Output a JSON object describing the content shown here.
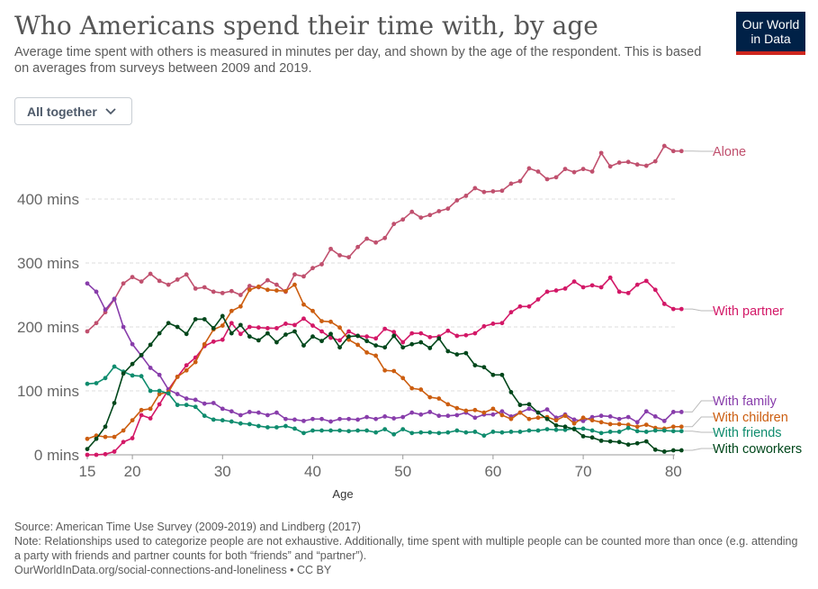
{
  "header": {
    "title": "Who Americans spend their time with, by age",
    "subtitle": "Average time spent with others is measured in minutes per day, and shown by the age of the respondent. This is based on averages from surveys between 2009 and 2019.",
    "logo_line1": "Our World",
    "logo_line2": "in Data"
  },
  "controls": {
    "dropdown_label": "All together"
  },
  "footer": {
    "source": "Source: American Time Use Survey (2009-2019) and Lindberg (2017)",
    "note": "Note: Relationships used to categorize people are not exhaustive. Additionally, time spent with multiple people can be counted more than once (e.g. attending a party with friends and partner counts for both “friends” and “partner”).",
    "link": "OurWorldInData.org/social-connections-and-loneliness • CC BY"
  },
  "chart_data": {
    "type": "line",
    "xlabel": "Age",
    "ylabel": "",
    "xlim": [
      15,
      80
    ],
    "ylim": [
      0,
      480
    ],
    "x_ticks": [
      15,
      20,
      30,
      40,
      50,
      60,
      70,
      80
    ],
    "y_ticks": [
      0,
      100,
      200,
      300,
      400
    ],
    "y_tick_labels": [
      "0 mins",
      "100 mins",
      "200 mins",
      "300 mins",
      "400 mins"
    ],
    "grid": "horizontal dashed",
    "legend": "right, labels at line ends",
    "x": [
      15,
      16,
      17,
      18,
      19,
      20,
      21,
      22,
      23,
      24,
      25,
      26,
      27,
      28,
      29,
      30,
      31,
      32,
      33,
      34,
      35,
      36,
      37,
      38,
      39,
      40,
      41,
      42,
      43,
      44,
      45,
      46,
      47,
      48,
      49,
      50,
      51,
      52,
      53,
      54,
      55,
      56,
      57,
      58,
      59,
      60,
      61,
      62,
      63,
      64,
      65,
      66,
      67,
      68,
      69,
      70,
      71,
      72,
      73,
      74,
      75,
      76,
      77,
      78,
      79,
      80,
      80.9
    ],
    "series": [
      {
        "name": "Alone",
        "color": "#c0506e",
        "values": [
          193,
          206,
          223,
          243,
          268,
          278,
          271,
          283,
          272,
          266,
          274,
          282,
          260,
          262,
          255,
          253,
          256,
          250,
          264,
          262,
          273,
          266,
          255,
          282,
          279,
          292,
          298,
          322,
          312,
          309,
          325,
          338,
          332,
          339,
          361,
          368,
          380,
          371,
          375,
          381,
          385,
          398,
          405,
          417,
          411,
          412,
          413,
          424,
          428,
          448,
          443,
          431,
          434,
          447,
          442,
          447,
          443,
          472,
          451,
          457,
          458,
          454,
          452,
          459,
          483,
          475,
          475
        ]
      },
      {
        "name": "With partner",
        "color": "#d31867",
        "values": [
          0,
          0,
          1,
          5,
          20,
          26,
          62,
          57,
          79,
          102,
          122,
          140,
          152,
          170,
          177,
          180,
          206,
          189,
          200,
          199,
          198,
          198,
          205,
          203,
          213,
          202,
          193,
          183,
          179,
          193,
          186,
          185,
          182,
          197,
          192,
          176,
          190,
          190,
          184,
          185,
          194,
          186,
          187,
          190,
          201,
          205,
          206,
          223,
          232,
          232,
          243,
          255,
          257,
          260,
          271,
          262,
          265,
          262,
          277,
          255,
          253,
          266,
          272,
          258,
          236,
          228,
          228
        ]
      },
      {
        "name": "With family",
        "color": "#883dab",
        "values": [
          268,
          255,
          227,
          244,
          200,
          173,
          155,
          136,
          125,
          102,
          95,
          88,
          86,
          80,
          81,
          72,
          68,
          62,
          67,
          66,
          62,
          66,
          56,
          55,
          53,
          56,
          56,
          52,
          56,
          56,
          55,
          59,
          56,
          60,
          57,
          59,
          66,
          63,
          67,
          61,
          61,
          62,
          66,
          58,
          63,
          63,
          68,
          60,
          66,
          72,
          66,
          71,
          58,
          63,
          55,
          53,
          59,
          61,
          60,
          56,
          59,
          51,
          68,
          60,
          53,
          67,
          67
        ]
      },
      {
        "name": "With children",
        "color": "#cc5e10",
        "values": [
          25,
          30,
          28,
          28,
          38,
          54,
          70,
          72,
          95,
          98,
          122,
          132,
          145,
          173,
          196,
          202,
          225,
          232,
          258,
          263,
          258,
          257,
          256,
          266,
          235,
          225,
          209,
          208,
          199,
          180,
          172,
          160,
          155,
          132,
          131,
          120,
          104,
          102,
          90,
          88,
          79,
          73,
          69,
          70,
          66,
          72,
          62,
          56,
          66,
          56,
          58,
          59,
          54,
          61,
          49,
          58,
          54,
          51,
          48,
          48,
          47,
          44,
          47,
          42,
          41,
          44,
          44
        ]
      },
      {
        "name": "With friends",
        "color": "#0f8c6e",
        "values": [
          111,
          112,
          120,
          138,
          130,
          124,
          123,
          100,
          100,
          96,
          78,
          78,
          75,
          61,
          55,
          54,
          52,
          49,
          48,
          45,
          43,
          43,
          45,
          41,
          34,
          38,
          38,
          38,
          38,
          37,
          38,
          38,
          35,
          40,
          32,
          40,
          34,
          35,
          35,
          34,
          35,
          38,
          35,
          36,
          30,
          36,
          35,
          36,
          36,
          38,
          38,
          40,
          39,
          39,
          41,
          41,
          38,
          34,
          36,
          36,
          42,
          37,
          36,
          38,
          38,
          37,
          37
        ]
      },
      {
        "name": "With coworkers",
        "color": "#00471b",
        "values": [
          9,
          25,
          44,
          81,
          127,
          142,
          156,
          172,
          190,
          206,
          200,
          189,
          212,
          212,
          198,
          217,
          190,
          203,
          185,
          179,
          190,
          176,
          188,
          193,
          171,
          185,
          178,
          189,
          168,
          185,
          186,
          178,
          171,
          168,
          186,
          168,
          173,
          176,
          167,
          182,
          162,
          157,
          159,
          140,
          137,
          125,
          125,
          98,
          78,
          79,
          66,
          56,
          46,
          44,
          40,
          29,
          27,
          22,
          21,
          20,
          16,
          18,
          21,
          8,
          5,
          7,
          7
        ]
      }
    ]
  }
}
